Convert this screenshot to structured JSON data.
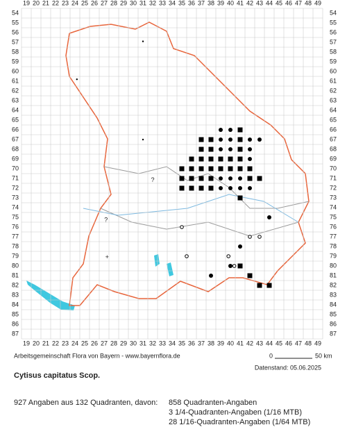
{
  "columns": [
    19,
    20,
    21,
    22,
    23,
    24,
    25,
    26,
    27,
    28,
    29,
    30,
    31,
    32,
    33,
    34,
    35,
    36,
    37,
    38,
    39,
    40,
    41,
    42,
    43,
    44,
    45,
    46,
    47,
    48,
    49
  ],
  "rows": [
    54,
    55,
    56,
    57,
    58,
    59,
    60,
    61,
    62,
    63,
    64,
    65,
    66,
    67,
    68,
    69,
    70,
    71,
    72,
    73,
    74,
    75,
    76,
    77,
    78,
    79,
    80,
    81,
    82,
    83,
    84,
    85,
    86,
    87
  ],
  "markers": [
    [
      41,
      66,
      "square"
    ],
    [
      37,
      67,
      "square"
    ],
    [
      38,
      67,
      "square"
    ],
    [
      41,
      67,
      "square"
    ],
    [
      37,
      68,
      "square"
    ],
    [
      38,
      68,
      "square"
    ],
    [
      41,
      68,
      "square"
    ],
    [
      36,
      69,
      "square"
    ],
    [
      37,
      69,
      "square"
    ],
    [
      38,
      69,
      "square"
    ],
    [
      39,
      69,
      "square"
    ],
    [
      40,
      69,
      "square"
    ],
    [
      41,
      69,
      "square"
    ],
    [
      35,
      70,
      "square"
    ],
    [
      36,
      70,
      "square"
    ],
    [
      37,
      70,
      "square"
    ],
    [
      38,
      70,
      "square"
    ],
    [
      39,
      70,
      "square"
    ],
    [
      40,
      70,
      "square"
    ],
    [
      41,
      70,
      "square"
    ],
    [
      42,
      70,
      "square"
    ],
    [
      35,
      71,
      "square"
    ],
    [
      36,
      71,
      "square"
    ],
    [
      37,
      71,
      "square"
    ],
    [
      38,
      71,
      "square"
    ],
    [
      42,
      71,
      "square"
    ],
    [
      43,
      71,
      "square"
    ],
    [
      35,
      72,
      "square"
    ],
    [
      36,
      72,
      "square"
    ],
    [
      37,
      72,
      "square"
    ],
    [
      38,
      72,
      "square"
    ],
    [
      41,
      73,
      "square"
    ],
    [
      41,
      80,
      "square"
    ],
    [
      42,
      81,
      "square"
    ],
    [
      43,
      82,
      "square"
    ],
    [
      44,
      82,
      "square"
    ],
    [
      39,
      66,
      "dot"
    ],
    [
      40,
      66,
      "dot"
    ],
    [
      39,
      67,
      "dot"
    ],
    [
      40,
      67,
      "dot"
    ],
    [
      42,
      67,
      "dot"
    ],
    [
      43,
      67,
      "dot"
    ],
    [
      39,
      68,
      "dot"
    ],
    [
      40,
      68,
      "dot"
    ],
    [
      41,
      68,
      "dot"
    ],
    [
      42,
      68,
      "dot"
    ],
    [
      38,
      69,
      "dot"
    ],
    [
      42,
      69,
      "dot"
    ],
    [
      39,
      71,
      "dot"
    ],
    [
      40,
      71,
      "dot"
    ],
    [
      41,
      71,
      "dot"
    ],
    [
      39,
      72,
      "dot"
    ],
    [
      40,
      72,
      "dot"
    ],
    [
      41,
      72,
      "dot"
    ],
    [
      42,
      72,
      "dot"
    ],
    [
      44,
      75,
      "dot"
    ],
    [
      41,
      78,
      "dot"
    ],
    [
      40,
      80,
      "dot"
    ],
    [
      38,
      81,
      "dot"
    ],
    [
      35,
      76,
      "open"
    ],
    [
      42,
      77,
      "open"
    ],
    [
      43,
      77,
      "open"
    ],
    [
      35.5,
      79,
      "open"
    ],
    [
      39.8,
      79,
      "open"
    ],
    [
      40.4,
      80,
      "open"
    ],
    [
      24.2,
      60.8,
      "small"
    ],
    [
      31,
      67,
      "small"
    ],
    [
      31,
      56.9,
      "small"
    ],
    [
      32,
      71.2,
      "?"
    ],
    [
      27.2,
      75.3,
      "?"
    ],
    [
      27.3,
      79.1,
      "+"
    ]
  ],
  "footer": {
    "credit": "Arbeitsgemeinschaft Flora von Bayern - www.bayernflora.de",
    "scale_start": "0",
    "scale_end": "50 km",
    "date": "Datenstand: 05.06.2025"
  },
  "species": "Cytisus capitatus Scop.",
  "stats": {
    "total": "927 Angaben aus 132 Quadranten, davon:",
    "lines": [
      "858 Quadranten-Angaben",
      "3 1/4-Quadranten-Angaben (1/16 MTB)",
      "28 1/16-Quadranten-Angaben (1/64 MTB)"
    ]
  }
}
